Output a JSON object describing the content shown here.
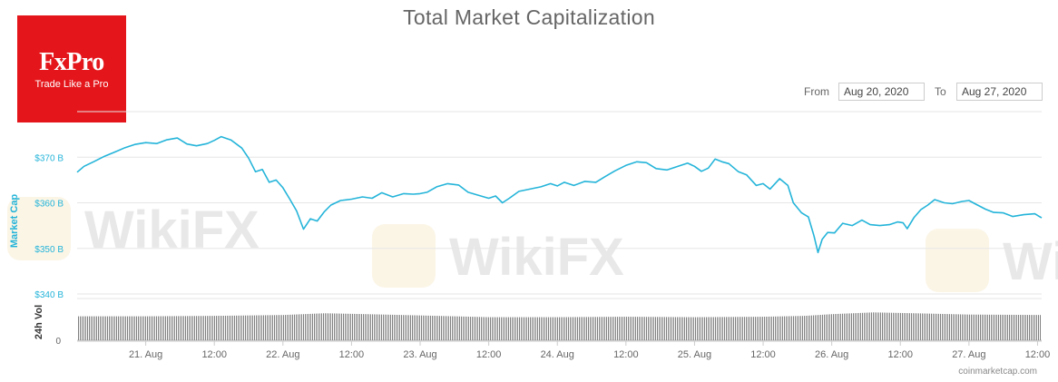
{
  "title": "Total Market Capitalization",
  "logo": {
    "brand": "FxPro",
    "tagline": "Trade Like a Pro",
    "color": "#e4161b"
  },
  "watermark": "WikiFX",
  "range": {
    "from_label": "From",
    "from_value": "Aug 20, 2020",
    "to_label": "To",
    "to_value": "Aug 27, 2020"
  },
  "source": "coinmarketcap.com",
  "colors": {
    "line": "#24b4d9",
    "axis_text": "#24b4d9",
    "volume": "#7f7f7f"
  },
  "chart_data": {
    "type": "line",
    "ylabel": "Market Cap",
    "y_ticks": [
      "$340 B",
      "$350 B",
      "$360 B",
      "$370 B"
    ],
    "ylim": [
      340,
      380
    ],
    "x_ticks": [
      {
        "label": "21. Aug",
        "value": 21.0
      },
      {
        "label": "12:00",
        "value": 21.5
      },
      {
        "label": "22. Aug",
        "value": 22.0
      },
      {
        "label": "12:00",
        "value": 22.5
      },
      {
        "label": "23. Aug",
        "value": 23.0
      },
      {
        "label": "12:00",
        "value": 23.5
      },
      {
        "label": "24. Aug",
        "value": 24.0
      },
      {
        "label": "12:00",
        "value": 24.5
      },
      {
        "label": "25. Aug",
        "value": 25.0
      },
      {
        "label": "12:00",
        "value": 25.5
      },
      {
        "label": "26. Aug",
        "value": 26.0
      },
      {
        "label": "12:00",
        "value": 26.5
      },
      {
        "label": "27. Aug",
        "value": 27.0
      },
      {
        "label": "12:00",
        "value": 27.5
      }
    ],
    "xlim": [
      20.5,
      27.53
    ],
    "series": [
      {
        "values": [
          [
            20.5,
            366.7
          ],
          [
            20.55,
            368.0
          ],
          [
            20.62,
            369.0
          ],
          [
            20.7,
            370.2
          ],
          [
            20.78,
            371.2
          ],
          [
            20.85,
            372.1
          ],
          [
            20.92,
            372.8
          ],
          [
            21.0,
            373.2
          ],
          [
            21.08,
            373.0
          ],
          [
            21.15,
            373.8
          ],
          [
            21.23,
            374.2
          ],
          [
            21.3,
            372.9
          ],
          [
            21.37,
            372.5
          ],
          [
            21.45,
            373.0
          ],
          [
            21.5,
            373.7
          ],
          [
            21.55,
            374.5
          ],
          [
            21.62,
            373.8
          ],
          [
            21.7,
            372.0
          ],
          [
            21.75,
            369.8
          ],
          [
            21.8,
            366.8
          ],
          [
            21.85,
            367.3
          ],
          [
            21.9,
            364.5
          ],
          [
            21.95,
            365.0
          ],
          [
            22.0,
            363.3
          ],
          [
            22.05,
            360.8
          ],
          [
            22.1,
            358.2
          ],
          [
            22.15,
            354.2
          ],
          [
            22.2,
            356.5
          ],
          [
            22.25,
            356.0
          ],
          [
            22.3,
            358.0
          ],
          [
            22.35,
            359.5
          ],
          [
            22.42,
            360.5
          ],
          [
            22.5,
            360.8
          ],
          [
            22.58,
            361.3
          ],
          [
            22.65,
            361.0
          ],
          [
            22.72,
            362.2
          ],
          [
            22.8,
            361.3
          ],
          [
            22.88,
            362.0
          ],
          [
            22.95,
            361.9
          ],
          [
            23.0,
            362.0
          ],
          [
            23.05,
            362.3
          ],
          [
            23.12,
            363.5
          ],
          [
            23.2,
            364.2
          ],
          [
            23.28,
            363.9
          ],
          [
            23.35,
            362.3
          ],
          [
            23.42,
            361.7
          ],
          [
            23.5,
            361.0
          ],
          [
            23.55,
            361.5
          ],
          [
            23.6,
            360.0
          ],
          [
            23.65,
            361.0
          ],
          [
            23.72,
            362.5
          ],
          [
            23.8,
            363.0
          ],
          [
            23.88,
            363.5
          ],
          [
            23.95,
            364.2
          ],
          [
            24.0,
            363.7
          ],
          [
            24.05,
            364.5
          ],
          [
            24.12,
            363.8
          ],
          [
            24.2,
            364.7
          ],
          [
            24.28,
            364.5
          ],
          [
            24.35,
            365.8
          ],
          [
            24.42,
            367.0
          ],
          [
            24.5,
            368.2
          ],
          [
            24.58,
            369.0
          ],
          [
            24.65,
            368.8
          ],
          [
            24.72,
            367.5
          ],
          [
            24.8,
            367.2
          ],
          [
            24.88,
            368.0
          ],
          [
            24.95,
            368.7
          ],
          [
            25.0,
            368.0
          ],
          [
            25.05,
            366.9
          ],
          [
            25.1,
            367.6
          ],
          [
            25.15,
            369.6
          ],
          [
            25.2,
            369.0
          ],
          [
            25.25,
            368.6
          ],
          [
            25.32,
            366.8
          ],
          [
            25.38,
            366.1
          ],
          [
            25.45,
            363.8
          ],
          [
            25.5,
            364.2
          ],
          [
            25.55,
            363.0
          ],
          [
            25.62,
            365.3
          ],
          [
            25.68,
            363.8
          ],
          [
            25.72,
            360.0
          ],
          [
            25.78,
            357.8
          ],
          [
            25.83,
            356.9
          ],
          [
            25.87,
            352.8
          ],
          [
            25.9,
            349.1
          ],
          [
            25.93,
            352.0
          ],
          [
            25.97,
            353.5
          ],
          [
            26.02,
            353.4
          ],
          [
            26.08,
            355.5
          ],
          [
            26.15,
            355.0
          ],
          [
            26.22,
            356.2
          ],
          [
            26.28,
            355.2
          ],
          [
            26.35,
            355.0
          ],
          [
            26.42,
            355.2
          ],
          [
            26.48,
            355.8
          ],
          [
            26.52,
            355.6
          ],
          [
            26.55,
            354.3
          ],
          [
            26.6,
            356.8
          ],
          [
            26.65,
            358.5
          ],
          [
            26.7,
            359.5
          ],
          [
            26.75,
            360.7
          ],
          [
            26.82,
            360.0
          ],
          [
            26.88,
            359.8
          ],
          [
            26.95,
            360.3
          ],
          [
            27.0,
            360.5
          ],
          [
            27.05,
            359.7
          ],
          [
            27.12,
            358.6
          ],
          [
            27.18,
            357.9
          ],
          [
            27.25,
            357.8
          ],
          [
            27.32,
            357.0
          ],
          [
            27.4,
            357.4
          ],
          [
            27.48,
            357.6
          ],
          [
            27.53,
            356.7
          ]
        ]
      }
    ],
    "volume": {
      "ylabel": "24h Vol",
      "y_ticks": [
        "0"
      ],
      "values": [
        [
          20.5,
          55
        ],
        [
          21.0,
          55
        ],
        [
          21.5,
          56
        ],
        [
          22.0,
          58
        ],
        [
          22.3,
          62
        ],
        [
          22.6,
          60
        ],
        [
          23.0,
          57
        ],
        [
          23.5,
          53
        ],
        [
          24.0,
          53
        ],
        [
          24.5,
          54
        ],
        [
          25.0,
          53
        ],
        [
          25.5,
          54
        ],
        [
          25.8,
          56
        ],
        [
          26.0,
          60
        ],
        [
          26.3,
          64
        ],
        [
          26.6,
          62
        ],
        [
          27.0,
          59
        ],
        [
          27.53,
          58
        ]
      ],
      "ylim": [
        0,
        100
      ]
    }
  }
}
